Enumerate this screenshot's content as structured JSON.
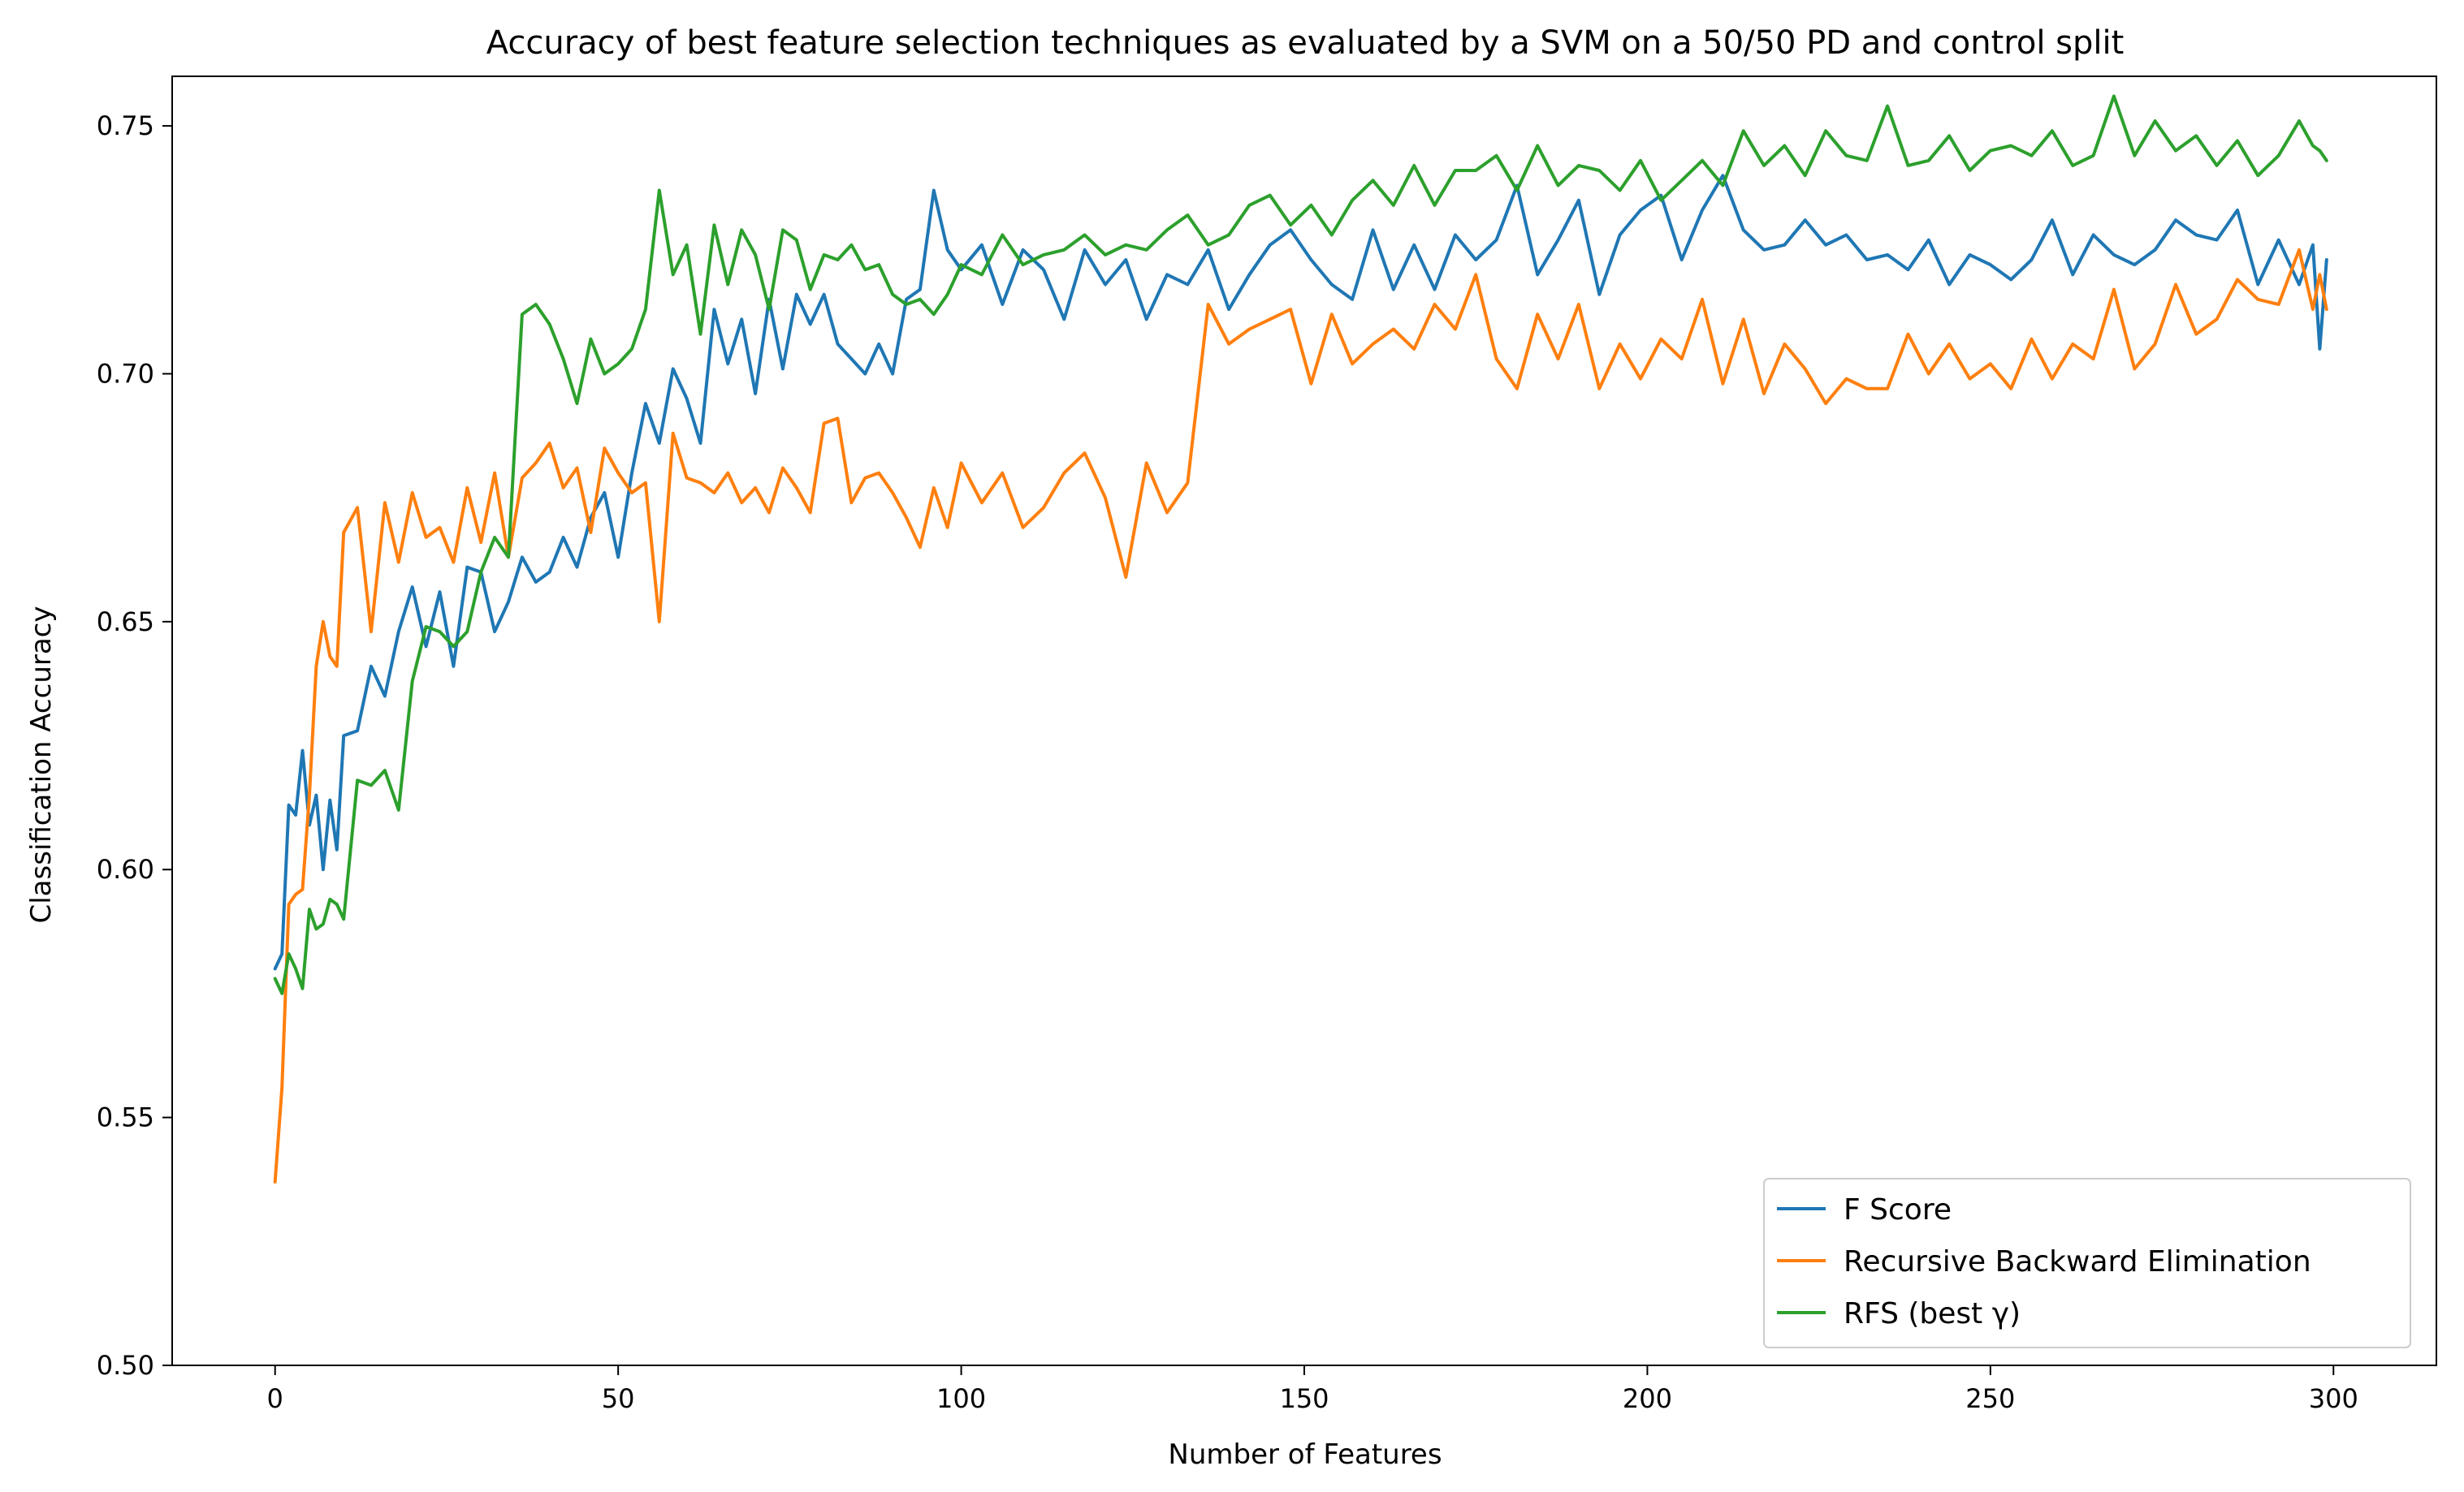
{
  "chart_data": {
    "type": "line",
    "title": "Accuracy of best feature selection techniques as evaluated by a SVM on a 50/50 PD and control split",
    "xlabel": "Number of Features",
    "ylabel": "Classification Accuracy",
    "xlim": [
      -15,
      315
    ],
    "ylim": [
      0.5,
      0.76
    ],
    "xticks": [
      0,
      50,
      100,
      150,
      200,
      250,
      300
    ],
    "xtick_labels": [
      "0",
      "50",
      "100",
      "150",
      "200",
      "250",
      "300"
    ],
    "yticks": [
      0.5,
      0.55,
      0.6,
      0.65,
      0.7,
      0.75
    ],
    "ytick_labels": [
      "0.50",
      "0.55",
      "0.60",
      "0.65",
      "0.70",
      "0.75"
    ],
    "grid": false,
    "legend_position": "lower-right",
    "series": [
      {
        "name": "F Score",
        "color": "#1f77b4",
        "x": [
          0,
          1,
          2,
          3,
          4,
          5,
          6,
          7,
          8,
          9,
          10,
          12,
          14,
          16,
          18,
          20,
          22,
          24,
          26,
          28,
          30,
          32,
          34,
          36,
          38,
          40,
          42,
          44,
          46,
          48,
          50,
          52,
          54,
          56,
          58,
          60,
          62,
          64,
          66,
          68,
          70,
          72,
          74,
          76,
          78,
          80,
          82,
          84,
          86,
          88,
          90,
          92,
          94,
          96,
          98,
          100,
          103,
          106,
          109,
          112,
          115,
          118,
          121,
          124,
          127,
          130,
          133,
          136,
          139,
          142,
          145,
          148,
          151,
          154,
          157,
          160,
          163,
          166,
          169,
          172,
          175,
          178,
          181,
          184,
          187,
          190,
          193,
          196,
          199,
          202,
          205,
          208,
          211,
          214,
          217,
          220,
          223,
          226,
          229,
          232,
          235,
          238,
          241,
          244,
          247,
          250,
          253,
          256,
          259,
          262,
          265,
          268,
          271,
          274,
          277,
          280,
          283,
          286,
          289,
          292,
          295,
          297,
          298,
          299
        ],
        "y": [
          0.58,
          0.583,
          0.613,
          0.611,
          0.624,
          0.609,
          0.615,
          0.6,
          0.614,
          0.604,
          0.627,
          0.628,
          0.641,
          0.635,
          0.648,
          0.657,
          0.645,
          0.656,
          0.641,
          0.661,
          0.66,
          0.648,
          0.654,
          0.663,
          0.658,
          0.66,
          0.667,
          0.661,
          0.671,
          0.676,
          0.663,
          0.68,
          0.694,
          0.686,
          0.701,
          0.695,
          0.686,
          0.713,
          0.702,
          0.711,
          0.696,
          0.715,
          0.701,
          0.716,
          0.71,
          0.716,
          0.706,
          0.703,
          0.7,
          0.706,
          0.7,
          0.715,
          0.717,
          0.737,
          0.725,
          0.721,
          0.726,
          0.714,
          0.725,
          0.721,
          0.711,
          0.725,
          0.718,
          0.723,
          0.711,
          0.72,
          0.718,
          0.725,
          0.713,
          0.72,
          0.726,
          0.729,
          0.723,
          0.718,
          0.715,
          0.729,
          0.717,
          0.726,
          0.717,
          0.728,
          0.723,
          0.727,
          0.738,
          0.72,
          0.727,
          0.735,
          0.716,
          0.728,
          0.733,
          0.736,
          0.723,
          0.733,
          0.74,
          0.729,
          0.725,
          0.726,
          0.731,
          0.726,
          0.728,
          0.723,
          0.724,
          0.721,
          0.727,
          0.718,
          0.724,
          0.722,
          0.719,
          0.723,
          0.731,
          0.72,
          0.728,
          0.724,
          0.722,
          0.725,
          0.731,
          0.728,
          0.727,
          0.733,
          0.718,
          0.727,
          0.718,
          0.726,
          0.705,
          0.723
        ]
      },
      {
        "name": "Recursive Backward Elimination",
        "color": "#ff7f0e",
        "x": [
          0,
          1,
          2,
          3,
          4,
          5,
          6,
          7,
          8,
          9,
          10,
          12,
          14,
          16,
          18,
          20,
          22,
          24,
          26,
          28,
          30,
          32,
          34,
          36,
          38,
          40,
          42,
          44,
          46,
          48,
          50,
          52,
          54,
          56,
          58,
          60,
          62,
          64,
          66,
          68,
          70,
          72,
          74,
          76,
          78,
          80,
          82,
          84,
          86,
          88,
          90,
          92,
          94,
          96,
          98,
          100,
          103,
          106,
          109,
          112,
          115,
          118,
          121,
          124,
          127,
          130,
          133,
          136,
          139,
          142,
          145,
          148,
          151,
          154,
          157,
          160,
          163,
          166,
          169,
          172,
          175,
          178,
          181,
          184,
          187,
          190,
          193,
          196,
          199,
          202,
          205,
          208,
          211,
          214,
          217,
          220,
          223,
          226,
          229,
          232,
          235,
          238,
          241,
          244,
          247,
          250,
          253,
          256,
          259,
          262,
          265,
          268,
          271,
          274,
          277,
          280,
          283,
          286,
          289,
          292,
          295,
          297,
          298,
          299
        ],
        "y": [
          0.537,
          0.556,
          0.593,
          0.595,
          0.596,
          0.615,
          0.641,
          0.65,
          0.643,
          0.641,
          0.668,
          0.673,
          0.648,
          0.674,
          0.662,
          0.676,
          0.667,
          0.669,
          0.662,
          0.677,
          0.666,
          0.68,
          0.663,
          0.679,
          0.682,
          0.686,
          0.677,
          0.681,
          0.668,
          0.685,
          0.68,
          0.676,
          0.678,
          0.65,
          0.688,
          0.679,
          0.678,
          0.676,
          0.68,
          0.674,
          0.677,
          0.672,
          0.681,
          0.677,
          0.672,
          0.69,
          0.691,
          0.674,
          0.679,
          0.68,
          0.676,
          0.671,
          0.665,
          0.677,
          0.669,
          0.682,
          0.674,
          0.68,
          0.669,
          0.673,
          0.68,
          0.684,
          0.675,
          0.659,
          0.682,
          0.672,
          0.678,
          0.714,
          0.706,
          0.709,
          0.711,
          0.713,
          0.698,
          0.712,
          0.702,
          0.706,
          0.709,
          0.705,
          0.714,
          0.709,
          0.72,
          0.703,
          0.697,
          0.712,
          0.703,
          0.714,
          0.697,
          0.706,
          0.699,
          0.707,
          0.703,
          0.715,
          0.698,
          0.711,
          0.696,
          0.706,
          0.701,
          0.694,
          0.699,
          0.697,
          0.697,
          0.708,
          0.7,
          0.706,
          0.699,
          0.702,
          0.697,
          0.707,
          0.699,
          0.706,
          0.703,
          0.717,
          0.701,
          0.706,
          0.718,
          0.708,
          0.711,
          0.719,
          0.715,
          0.714,
          0.725,
          0.713,
          0.72,
          0.713
        ]
      },
      {
        "name": "RFS (best γ)",
        "color": "#2ca02c",
        "x": [
          0,
          1,
          2,
          3,
          4,
          5,
          6,
          7,
          8,
          9,
          10,
          12,
          14,
          16,
          18,
          20,
          22,
          24,
          26,
          28,
          30,
          32,
          34,
          36,
          38,
          40,
          42,
          44,
          46,
          48,
          50,
          52,
          54,
          56,
          58,
          60,
          62,
          64,
          66,
          68,
          70,
          72,
          74,
          76,
          78,
          80,
          82,
          84,
          86,
          88,
          90,
          92,
          94,
          96,
          98,
          100,
          103,
          106,
          109,
          112,
          115,
          118,
          121,
          124,
          127,
          130,
          133,
          136,
          139,
          142,
          145,
          148,
          151,
          154,
          157,
          160,
          163,
          166,
          169,
          172,
          175,
          178,
          181,
          184,
          187,
          190,
          193,
          196,
          199,
          202,
          205,
          208,
          211,
          214,
          217,
          220,
          223,
          226,
          229,
          232,
          235,
          238,
          241,
          244,
          247,
          250,
          253,
          256,
          259,
          262,
          265,
          268,
          271,
          274,
          277,
          280,
          283,
          286,
          289,
          292,
          295,
          297,
          298,
          299
        ],
        "y": [
          0.578,
          0.575,
          0.583,
          0.58,
          0.576,
          0.592,
          0.588,
          0.589,
          0.594,
          0.593,
          0.59,
          0.618,
          0.617,
          0.62,
          0.612,
          0.638,
          0.649,
          0.648,
          0.645,
          0.648,
          0.66,
          0.667,
          0.663,
          0.712,
          0.714,
          0.71,
          0.703,
          0.694,
          0.707,
          0.7,
          0.702,
          0.705,
          0.713,
          0.737,
          0.72,
          0.726,
          0.708,
          0.73,
          0.718,
          0.729,
          0.724,
          0.713,
          0.729,
          0.727,
          0.717,
          0.724,
          0.723,
          0.726,
          0.721,
          0.722,
          0.716,
          0.714,
          0.715,
          0.712,
          0.716,
          0.722,
          0.72,
          0.728,
          0.722,
          0.724,
          0.725,
          0.728,
          0.724,
          0.726,
          0.725,
          0.729,
          0.732,
          0.726,
          0.728,
          0.734,
          0.736,
          0.73,
          0.734,
          0.728,
          0.735,
          0.739,
          0.734,
          0.742,
          0.734,
          0.741,
          0.741,
          0.744,
          0.737,
          0.746,
          0.738,
          0.742,
          0.741,
          0.737,
          0.743,
          0.735,
          0.739,
          0.743,
          0.738,
          0.749,
          0.742,
          0.746,
          0.74,
          0.749,
          0.744,
          0.743,
          0.754,
          0.742,
          0.743,
          0.748,
          0.741,
          0.745,
          0.746,
          0.744,
          0.749,
          0.742,
          0.744,
          0.756,
          0.744,
          0.751,
          0.745,
          0.748,
          0.742,
          0.747,
          0.74,
          0.744,
          0.751,
          0.746,
          0.745,
          0.743
        ]
      }
    ]
  }
}
